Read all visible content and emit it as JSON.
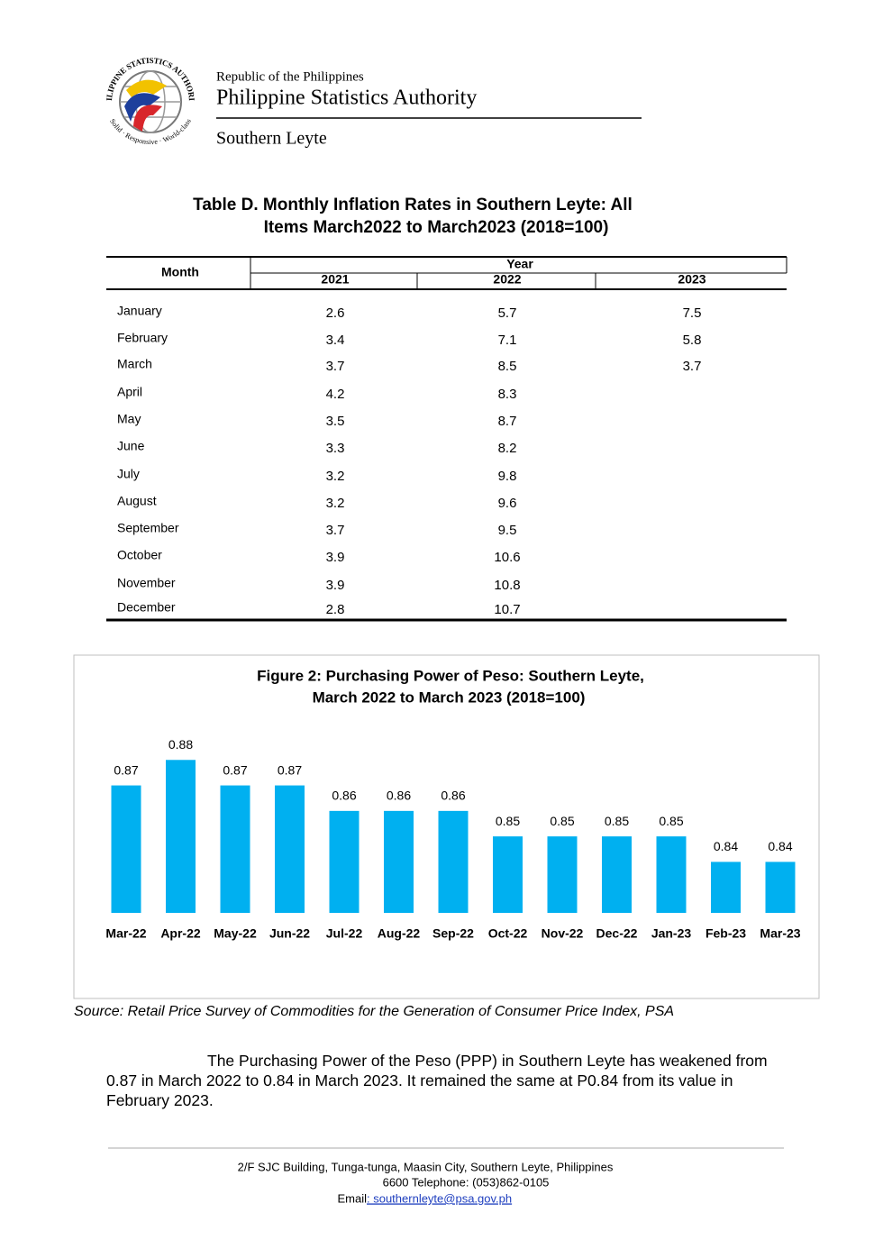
{
  "header": {
    "logo_top": "PHILIPPINE STATISTICS AUTHORITY",
    "logo_bottom": "Solid · Responsive · World-class",
    "line1": "Republic of the Philippines",
    "line2": "Philippine Statistics Authority",
    "line3": "Southern Leyte"
  },
  "table": {
    "title": [
      "Table D. Monthly Inflation Rates in Southern Leyte: All",
      "Items March2022 to March2023 (2018=100)"
    ],
    "month_header": "Month",
    "year_header": "Year",
    "years": [
      "2021",
      "2022",
      "2023"
    ],
    "rows": [
      [
        "January",
        2.6,
        5.7,
        7.5
      ],
      [
        "February",
        3.4,
        7.1,
        5.8
      ],
      [
        "March",
        3.7,
        8.5,
        3.7
      ],
      [
        "April",
        4.2,
        8.3
      ],
      [
        "May",
        3.5,
        8.7
      ],
      [
        "June",
        3.3,
        8.2
      ],
      [
        "July",
        3.2,
        9.8
      ],
      [
        "August",
        3.2,
        9.6
      ],
      [
        "September",
        3.7,
        9.5
      ],
      [
        "October",
        3.9,
        10.6
      ],
      [
        "November",
        3.9,
        10.8
      ],
      [
        "December",
        2.8,
        10.7
      ]
    ]
  },
  "chart_data": {
    "type": "bar",
    "title": [
      "Figure 2: Purchasing Power of Peso: Southern Leyte,",
      "March 2022 to March 2023 (2018=100)"
    ],
    "categories": [
      "Mar-22",
      "Apr-22",
      "May-22",
      "Jun-22",
      "Jul-22",
      "Aug-22",
      "Sep-22",
      "Oct-22",
      "Nov-22",
      "Dec-22",
      "Jan-23",
      "Feb-23",
      "Mar-23"
    ],
    "values": [
      0.87,
      0.88,
      0.87,
      0.87,
      0.86,
      0.86,
      0.86,
      0.85,
      0.85,
      0.85,
      0.85,
      0.84,
      0.84
    ],
    "color": "#00b0f0",
    "ylim": [
      0.82,
      0.89
    ]
  },
  "source": "Source: Retail Price Survey of Commodities for the Generation of Consumer Price Index, PSA",
  "paragraph": "The Purchasing Power of the Peso (PPP) in Southern Leyte has weakened from 0.87 in March 2022 to 0.84 in March 2023. It remained the same at P0.84 from its value in February 2023.",
  "footer": {
    "address": "2/F SJC Building, Tunga-tunga, Maasin City, Southern Leyte, Philippines",
    "phone": "6600 Telephone: (053)862-0105",
    "email_label": "Email",
    "email": ": southernleyte@psa.gov.ph"
  }
}
